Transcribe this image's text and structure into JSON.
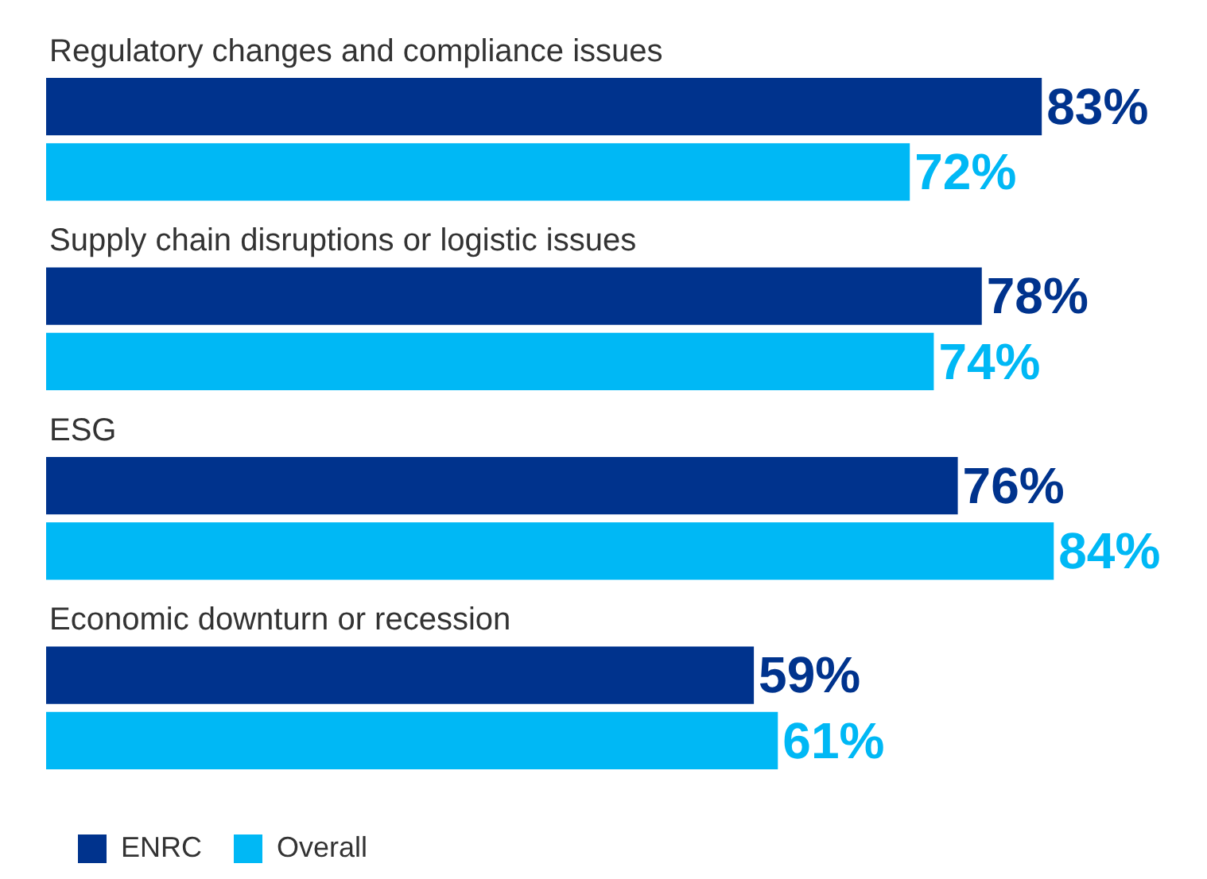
{
  "chart_data": {
    "type": "bar",
    "orientation": "horizontal",
    "categories": [
      "Regulatory changes and compliance issues",
      "Supply chain disruptions or logistic issues",
      "ESG",
      "Economic downturn or recession"
    ],
    "series": [
      {
        "name": "ENRC",
        "color": "#00338d",
        "values": [
          83,
          78,
          76,
          59
        ],
        "value_labels": [
          "83%",
          "78%",
          "76%",
          "59%"
        ]
      },
      {
        "name": "Overall",
        "color": "#00b8f5",
        "values": [
          72,
          74,
          84,
          61
        ],
        "value_labels": [
          "72%",
          "74%",
          "84%",
          "61%"
        ]
      }
    ],
    "legend": "bottom left"
  }
}
